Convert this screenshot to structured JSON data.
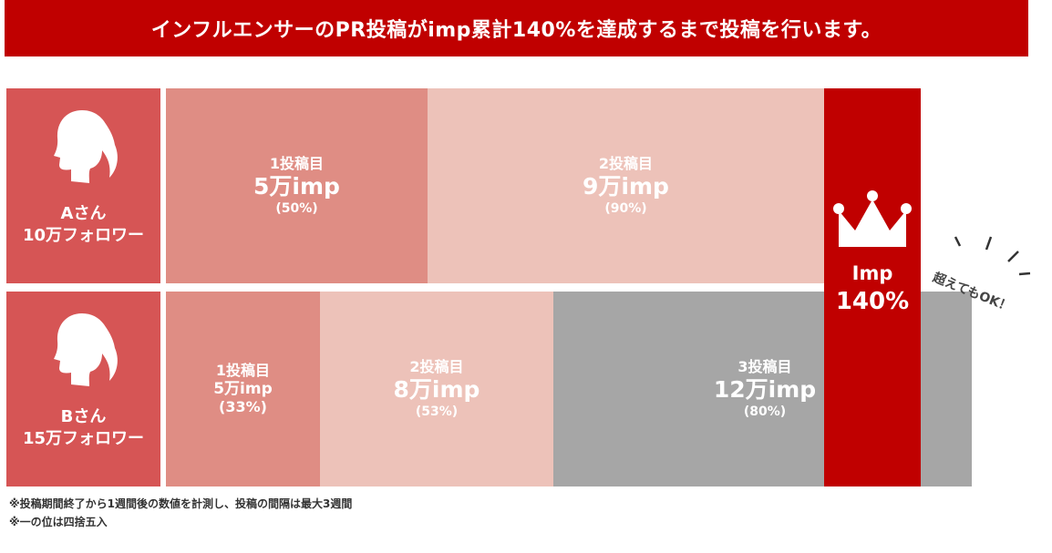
{
  "title": "インフルエンサーのPR投稿がimp累計140%を達成するまで投稿を行います。",
  "rows": [
    {
      "person": {
        "name": "Aさん",
        "followers": "10万フォロワー"
      },
      "posts": [
        {
          "label": "1投稿目",
          "value": "5万imp",
          "pct": "(50%)"
        },
        {
          "label": "2投稿目",
          "value": "9万imp",
          "pct": "(90%)"
        }
      ]
    },
    {
      "person": {
        "name": "Bさん",
        "followers": "15万フォロワー"
      },
      "posts": [
        {
          "label": "1投稿目",
          "value": "5万imp",
          "pct": "(33%)"
        },
        {
          "label": "2投稿目",
          "value": "8万imp",
          "pct": "(53%)"
        },
        {
          "label": "3投稿目",
          "value": "12万imp",
          "pct": "(80%)"
        }
      ]
    }
  ],
  "target": {
    "line1": "Imp",
    "line2": "140%"
  },
  "exceed_note": "超えてもOK！",
  "footnotes": [
    "※投稿期間終了から1週間後の数値を計測し、投稿の間隔は最大3週間",
    "※一の位は四捨五入"
  ],
  "colors": {
    "title_bg": "#c00000",
    "person_bg": "#d65555",
    "post1": "#df8d84",
    "post2": "#edc2b9",
    "post3": "#a6a6a6",
    "target_bg": "#c00000"
  },
  "icons": {
    "person": "woman-silhouette-icon",
    "crown": "crown-icon"
  }
}
